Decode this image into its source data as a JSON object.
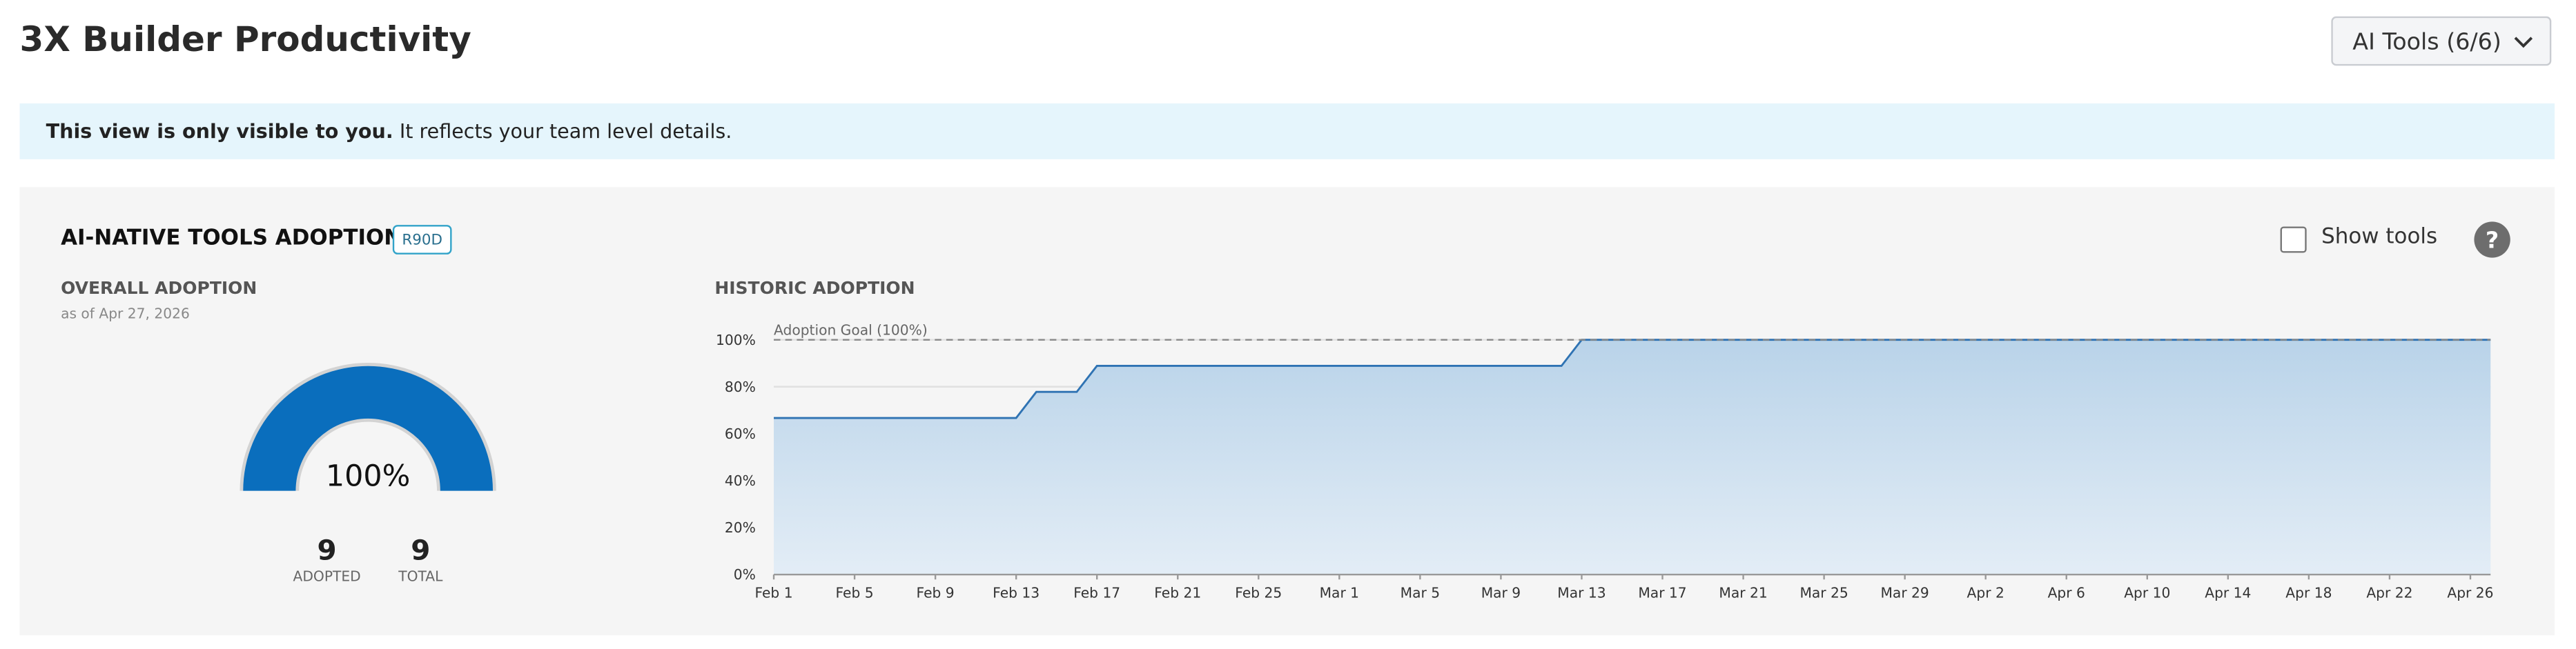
{
  "header": {
    "title": "3X Builder Productivity",
    "dropdown": "AI Tools (6/6)"
  },
  "banner": {
    "bold": "This view is only visible to you.",
    "text": "It reflects your team level details."
  },
  "card": {
    "title": "AI-NATIVE TOOLS ADOPTION",
    "badge": "R90D",
    "show_tools": "Show tools",
    "help": "?",
    "overall": {
      "title": "OVERALL ADOPTION",
      "as_of": "as of Apr 27, 2026",
      "value": 100,
      "value_label": "100%",
      "adopted": 9,
      "adopted_label": "ADOPTED",
      "total": 9,
      "total_label": "TOTAL",
      "color": "#0a6ebd"
    }
  },
  "chart_data": {
    "type": "area",
    "title": "HISTORIC ADOPTION",
    "x": [
      "Feb 1",
      "Feb 13",
      "Feb 14",
      "Feb 16",
      "Feb 17",
      "Mar 12",
      "Mar 13",
      "Apr 27"
    ],
    "values": [
      66.7,
      66.7,
      77.8,
      77.8,
      88.9,
      88.9,
      100,
      100
    ],
    "color": "#2f73b3",
    "xlim": [
      "Feb 1",
      "Apr 27"
    ],
    "xticks": [
      "Feb 1",
      "Feb 5",
      "Feb 9",
      "Feb 13",
      "Feb 17",
      "Feb 21",
      "Feb 25",
      "Mar 1",
      "Mar 5",
      "Mar 9",
      "Mar 13",
      "Mar 17",
      "Mar 21",
      "Mar 25",
      "Mar 29",
      "Apr 2",
      "Apr 6",
      "Apr 10",
      "Apr 14",
      "Apr 18",
      "Apr 22",
      "Apr 26"
    ],
    "ylim": [
      0,
      100
    ],
    "yticks": [
      {
        "value": 0,
        "label": "0%"
      },
      {
        "value": 20,
        "label": "20%"
      },
      {
        "value": 40,
        "label": "40%"
      },
      {
        "value": 60,
        "label": "60%"
      },
      {
        "value": 80,
        "label": "80%"
      },
      {
        "value": 100,
        "label": "100%"
      }
    ],
    "grid": true,
    "goal": {
      "value": 100,
      "label": "Adoption Goal (100%)"
    }
  }
}
